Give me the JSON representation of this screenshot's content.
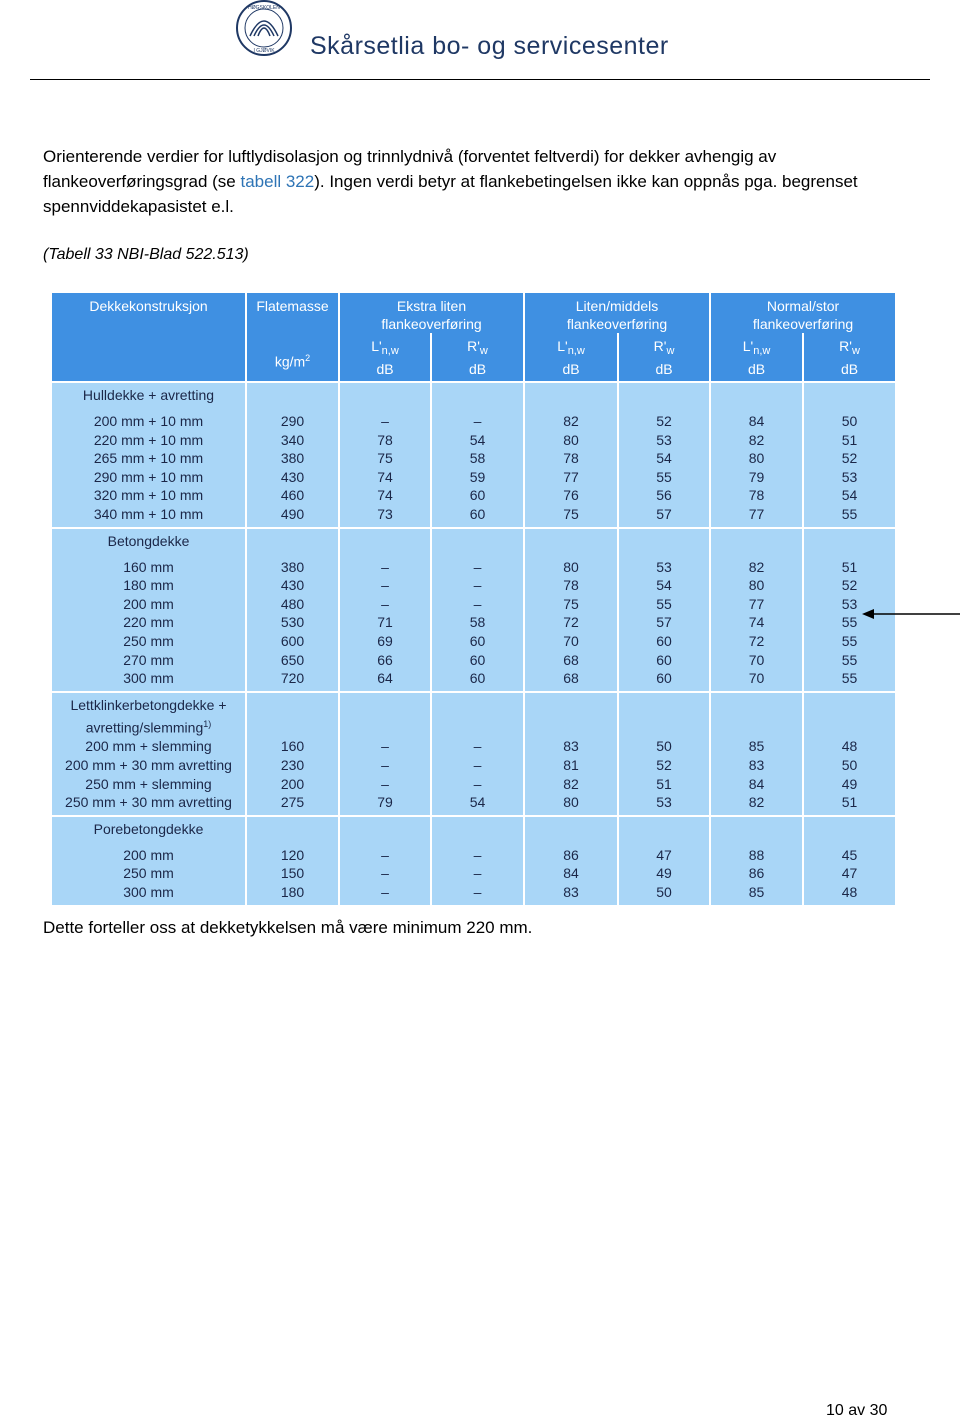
{
  "header": {
    "logo_top": "HØGSKOLEN",
    "logo_bottom": "I GJØVIK",
    "title": "Skårsetlia bo- og servicesenter"
  },
  "intro": {
    "before": "Orienterende verdier for luftlydisolasjon og trinnlydnivå (forventet feltverdi) for dekker avhengig av flankeoverføringsgrad (se ",
    "link": "tabell 322",
    "after": "). Ingen verdi betyr at flankebetingelsen ikke kan oppnås pga. begrenset spennviddekapasistet e.l."
  },
  "caption": "(Tabell 33 NBI-Blad 522.513)",
  "table": {
    "col1": "Dekkekonstruksjon",
    "col2": "Flatemasse",
    "col2_unit": "kg/m",
    "col2_unit_sup": "2",
    "groups": [
      {
        "line1": "Ekstra liten",
        "line2": "flankeoverføring"
      },
      {
        "line1": "Liten/middels",
        "line2": "flankeoverføring"
      },
      {
        "line1": "Normal/stor",
        "line2": "flankeoverføring"
      }
    ],
    "subcols": [
      {
        "main": "L'",
        "sub": "n,w",
        "unit": "dB"
      },
      {
        "main": "R'",
        "sub": "w",
        "unit": "dB"
      },
      {
        "main": "L'",
        "sub": "n,w",
        "unit": "dB"
      },
      {
        "main": "R'",
        "sub": "w",
        "unit": "dB"
      },
      {
        "main": "L'",
        "sub": "n,w",
        "unit": "dB"
      },
      {
        "main": "R'",
        "sub": "w",
        "unit": "dB"
      }
    ],
    "sections": [
      {
        "title": "Hulldekke + avretting",
        "rows": [
          [
            "200 mm + 10 mm",
            "290",
            "–",
            "–",
            "82",
            "52",
            "84",
            "50"
          ],
          [
            "220 mm + 10 mm",
            "340",
            "78",
            "54",
            "80",
            "53",
            "82",
            "51"
          ],
          [
            "265 mm + 10 mm",
            "380",
            "75",
            "58",
            "78",
            "54",
            "80",
            "52"
          ],
          [
            "290 mm + 10 mm",
            "430",
            "74",
            "59",
            "77",
            "55",
            "79",
            "53"
          ],
          [
            "320 mm + 10 mm",
            "460",
            "74",
            "60",
            "76",
            "56",
            "78",
            "54"
          ],
          [
            "340 mm + 10 mm",
            "490",
            "73",
            "60",
            "75",
            "57",
            "77",
            "55"
          ]
        ]
      },
      {
        "title": "Betongdekke",
        "rows": [
          [
            "160 mm",
            "380",
            "–",
            "–",
            "80",
            "53",
            "82",
            "51"
          ],
          [
            "180 mm",
            "430",
            "–",
            "–",
            "78",
            "54",
            "80",
            "52"
          ],
          [
            "200 mm",
            "480",
            "–",
            "–",
            "75",
            "55",
            "77",
            "53"
          ],
          [
            "220 mm",
            "530",
            "71",
            "58",
            "72",
            "57",
            "74",
            "55"
          ],
          [
            "250 mm",
            "600",
            "69",
            "60",
            "70",
            "60",
            "72",
            "55"
          ],
          [
            "270 mm",
            "650",
            "66",
            "60",
            "68",
            "60",
            "70",
            "55"
          ],
          [
            "300 mm",
            "720",
            "64",
            "60",
            "68",
            "60",
            "70",
            "55"
          ]
        ]
      },
      {
        "title": "Lettklinkerbetongdekke +",
        "title2": "avretting/slemming",
        "title2_sup": "1)",
        "rows": [
          [
            "200 mm + slemming",
            "160",
            "–",
            "–",
            "83",
            "50",
            "85",
            "48"
          ],
          [
            "200 mm + 30 mm avretting",
            "230",
            "–",
            "–",
            "81",
            "52",
            "83",
            "50"
          ],
          [
            "250 mm + slemming",
            "200",
            "–",
            "–",
            "82",
            "51",
            "84",
            "49"
          ],
          [
            "250 mm + 30 mm avretting",
            "275",
            "79",
            "54",
            "80",
            "53",
            "82",
            "51"
          ]
        ]
      },
      {
        "title": "Porebetongdekke",
        "rows": [
          [
            "200 mm",
            "120",
            "–",
            "–",
            "86",
            "47",
            "88",
            "45"
          ],
          [
            "250 mm",
            "150",
            "–",
            "–",
            "84",
            "49",
            "86",
            "47"
          ],
          [
            "300 mm",
            "180",
            "–",
            "–",
            "83",
            "50",
            "85",
            "48"
          ]
        ]
      }
    ]
  },
  "conclusion": "Dette forteller oss at dekketykkelsen må være minimum 220 mm.",
  "footer": {
    "page": "10 av 30"
  }
}
